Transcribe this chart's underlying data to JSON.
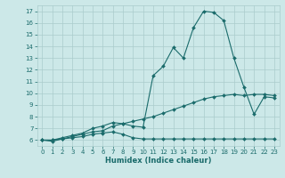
{
  "xlabel": "Humidex (Indice chaleur)",
  "bg_color": "#cce8e8",
  "grid_color": "#aacccc",
  "line_color": "#1a6b6b",
  "xlim": [
    -0.5,
    23.5
  ],
  "ylim": [
    5.5,
    17.5
  ],
  "xticks": [
    0,
    1,
    2,
    3,
    4,
    5,
    6,
    7,
    8,
    9,
    10,
    11,
    12,
    13,
    14,
    15,
    16,
    17,
    18,
    19,
    20,
    21,
    22,
    23
  ],
  "yticks": [
    6,
    7,
    8,
    9,
    10,
    11,
    12,
    13,
    14,
    15,
    16,
    17
  ],
  "series": [
    {
      "x": [
        0,
        1,
        2,
        3,
        4,
        5,
        6,
        7,
        8,
        9,
        10,
        11,
        12,
        13,
        14,
        15,
        16,
        17,
        18,
        19,
        20,
        21,
        22,
        23
      ],
      "y": [
        6.0,
        5.9,
        6.1,
        6.2,
        6.3,
        6.5,
        6.6,
        6.7,
        6.5,
        6.2,
        6.1,
        6.1,
        6.1,
        6.1,
        6.1,
        6.1,
        6.1,
        6.1,
        6.1,
        6.1,
        6.1,
        6.1,
        6.1,
        6.1
      ]
    },
    {
      "x": [
        0,
        1,
        2,
        3,
        4,
        5,
        6,
        7,
        8,
        9,
        10,
        11,
        12,
        13,
        14,
        15,
        16,
        17,
        18,
        19,
        20,
        21,
        22,
        23
      ],
      "y": [
        6.0,
        6.0,
        6.1,
        6.3,
        6.5,
        6.7,
        6.8,
        7.2,
        7.4,
        7.6,
        7.8,
        8.0,
        8.3,
        8.6,
        8.9,
        9.2,
        9.5,
        9.7,
        9.8,
        9.9,
        9.8,
        9.9,
        9.9,
        9.8
      ]
    },
    {
      "x": [
        0,
        1,
        2,
        3,
        4,
        5,
        6,
        7,
        8,
        9,
        10,
        11,
        12,
        13,
        14,
        15,
        16,
        17,
        18,
        19,
        20,
        21,
        22,
        23
      ],
      "y": [
        6.0,
        6.0,
        6.2,
        6.4,
        6.6,
        7.0,
        7.2,
        7.5,
        7.4,
        7.2,
        7.1,
        11.5,
        12.3,
        13.9,
        13.0,
        15.6,
        17.0,
        16.9,
        16.2,
        13.0,
        10.5,
        8.2,
        9.7,
        9.6
      ]
    }
  ]
}
